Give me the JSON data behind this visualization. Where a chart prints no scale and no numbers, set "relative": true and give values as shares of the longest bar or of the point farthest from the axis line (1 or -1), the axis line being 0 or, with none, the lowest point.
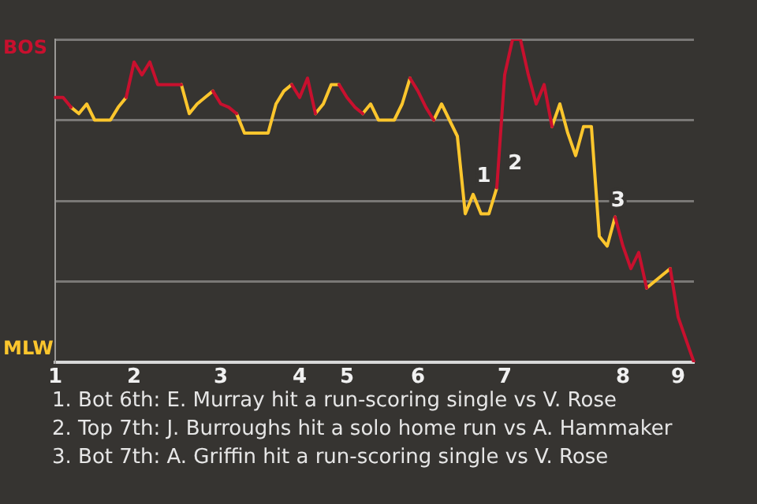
{
  "chart_data": {
    "type": "line",
    "relative": true,
    "categories": [
      "1",
      null,
      null,
      null,
      null,
      null,
      null,
      null,
      null,
      null,
      "2",
      null,
      null,
      null,
      null,
      null,
      null,
      null,
      null,
      null,
      null,
      "3",
      null,
      null,
      null,
      null,
      null,
      null,
      null,
      null,
      null,
      "4",
      null,
      null,
      null,
      null,
      null,
      "5",
      null,
      null,
      null,
      null,
      null,
      null,
      null,
      null,
      "6",
      null,
      null,
      null,
      null,
      null,
      null,
      null,
      null,
      null,
      null,
      "7",
      null,
      null,
      null,
      null,
      null,
      null,
      null,
      null,
      null,
      null,
      null,
      null,
      null,
      null,
      "8",
      null,
      null,
      null,
      null,
      null,
      null,
      "9",
      null,
      null
    ],
    "series": [
      {
        "color": "#c8102e",
        "values": [
          0.82,
          0.82,
          0.79,
          null,
          null,
          null,
          null,
          null,
          null,
          0.82,
          0.93,
          0.89,
          0.93,
          0.86,
          0.86,
          0.86,
          0.86,
          null,
          null,
          null,
          0.84,
          0.8,
          0.79,
          0.77,
          null,
          null,
          null,
          null,
          null,
          null,
          0.86,
          0.82,
          0.88,
          0.77,
          null,
          null,
          0.86,
          0.82,
          0.79,
          0.77,
          null,
          null,
          null,
          null,
          null,
          0.88,
          0.84,
          0.79,
          0.75,
          null,
          null,
          null,
          null,
          null,
          null,
          null,
          0.54,
          0.89,
          1,
          1,
          0.89,
          0.8,
          0.86,
          0.73,
          null,
          null,
          null,
          null,
          null,
          null,
          null,
          0.45,
          0.36,
          0.29,
          0.34,
          0.23,
          null,
          null,
          0.29,
          0.14,
          0.07,
          0
        ]
      },
      {
        "color": "#fcc62d",
        "values": [
          null,
          null,
          0.79,
          0.77,
          0.8,
          0.75,
          0.75,
          0.75,
          0.79,
          0.82,
          null,
          null,
          null,
          null,
          null,
          null,
          0.86,
          0.77,
          0.8,
          0.82,
          0.84,
          null,
          null,
          0.77,
          0.71,
          0.71,
          0.71,
          0.71,
          0.8,
          0.84,
          0.86,
          null,
          null,
          0.77,
          0.8,
          0.86,
          0.86,
          null,
          null,
          0.77,
          0.8,
          0.75,
          0.75,
          0.75,
          0.8,
          0.88,
          null,
          null,
          0.75,
          0.8,
          0.75,
          0.7,
          0.46,
          0.52,
          0.46,
          0.46,
          0.54,
          null,
          null,
          null,
          null,
          null,
          null,
          0.73,
          0.8,
          0.71,
          0.64,
          0.73,
          0.73,
          0.39,
          0.36,
          0.45,
          null,
          null,
          null,
          0.23,
          0.25,
          0.27,
          0.29,
          null,
          null,
          null
        ]
      }
    ],
    "grid": "y",
    "legend": false,
    "marker": "none",
    "line_style": "solid",
    "annotations": [
      "BOS",
      "MLW",
      "1",
      "2",
      "3",
      "1. Bot 6th: E. Murray hit a run-scoring single vs V. Rose",
      "2. Top 7th: J. Burroughs hit a solo home run vs A. Hammaker",
      "3. Bot 7th: A. Griffin hit a run-scoring single vs V. Rose"
    ]
  }
}
